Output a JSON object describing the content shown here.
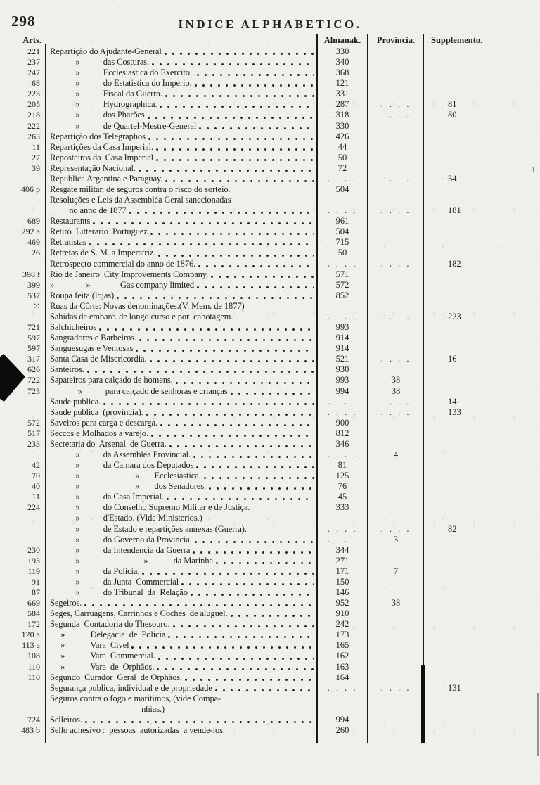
{
  "page": {
    "number": "298",
    "title": "INDICE ALPHABETICO."
  },
  "columns": {
    "arts": "Arts.",
    "almanak": "Almanak.",
    "provincia": "Provincia.",
    "supplemento": "Supplemento."
  },
  "ink_color": "#1f1f1f",
  "paper_color": "#f1efe9",
  "artifacts": {
    "right_margin_digit": "1"
  },
  "rows": [
    {
      "art": "221",
      "entry": "Repartição do Ajudante-General",
      "alm": "330",
      "prov": "",
      "sup": ""
    },
    {
      "art": "237",
      "entry": "            »           das Costuras.",
      "alm": "340",
      "prov": "",
      "sup": ""
    },
    {
      "art": "247",
      "entry": "            »           Ecclesiastica do Exercito..",
      "alm": "368",
      "prov": "",
      "sup": ""
    },
    {
      "art": "68",
      "entry": "            »           do Estatistica do Imperio.",
      "alm": "121",
      "prov": "",
      "sup": ""
    },
    {
      "art": "223",
      "entry": "            »           Fiscal da Guerra.",
      "alm": "331",
      "prov": "",
      "sup": ""
    },
    {
      "art": "205",
      "entry": "            »           Hydrographica.",
      "alm": "287",
      "prov": ". . . .",
      "sup": "81"
    },
    {
      "art": "218",
      "entry": "            »           dos Pharões",
      "alm": "318",
      "prov": ". . . .",
      "sup": "80"
    },
    {
      "art": "222",
      "entry": "            »           de Quartel-Mestre-General",
      "alm": "330",
      "prov": "",
      "sup": ""
    },
    {
      "art": "263",
      "entry": "Repartição dos Telegraphos",
      "alm": "426",
      "prov": "",
      "sup": ""
    },
    {
      "art": "11",
      "entry": "Repartições da Casa Imperial.",
      "alm": "44",
      "prov": "",
      "sup": ""
    },
    {
      "art": "27",
      "entry": "Reposteiros da  Casa Imperial",
      "alm": "50",
      "prov": "",
      "sup": ""
    },
    {
      "art": "39",
      "entry": "Representação Nacional.",
      "alm": "72",
      "prov": "",
      "sup": ""
    },
    {
      "art": "",
      "entry": "Republica Argentina e Paraguay.",
      "alm": ". . . .",
      "prov": ". . . .",
      "sup": "34"
    },
    {
      "art": "406 p",
      "entry": "Resgate militar, de seguros contra o risco do sorteio.",
      "alm": "504",
      "prov": "",
      "sup": "",
      "leader": false
    },
    {
      "art": "",
      "entry": "Resoluções e Leis da Assembléa Geral sanccionadas",
      "alm": "",
      "prov": "",
      "sup": "",
      "leader": false
    },
    {
      "art": "",
      "entry": "         no anno de 1877",
      "alm": ". . . .",
      "prov": ". . . .",
      "sup": "181"
    },
    {
      "art": "689",
      "entry": "Restaurants",
      "alm": "961",
      "prov": "",
      "sup": ""
    },
    {
      "art": "292 a",
      "entry": "Retiro  Litterario  Portuguez",
      "alm": "504",
      "prov": "",
      "sup": ""
    },
    {
      "art": "469",
      "entry": "Retratistas",
      "alm": "715",
      "prov": "",
      "sup": ""
    },
    {
      "art": "26",
      "entry": "Retretas de S. M. a Imperatriz.",
      "alm": "50",
      "prov": "",
      "sup": ""
    },
    {
      "art": "",
      "entry": "Retrospecto commercial do anno de 1876.",
      "alm": ". . . .",
      "prov": ". . . .",
      "sup": "182"
    },
    {
      "art": "398 f",
      "entry": "Rio de Janeiro  City Improvements Company.",
      "alm": "571",
      "prov": "",
      "sup": ""
    },
    {
      "art": "399",
      "entry": "»               »              Gas company limited",
      "alm": "572",
      "prov": "",
      "sup": ""
    },
    {
      "art": "537",
      "entry": "Roupa feita (lojas)",
      "alm": "852",
      "prov": "",
      "sup": ""
    },
    {
      "art": "⁙",
      "entry": "Ruas da Côrte: Novas denominações.(V. Mem. de 1877)",
      "alm": "",
      "prov": "",
      "sup": "",
      "leader": false
    },
    {
      "art": "",
      "entry": "Sahidas de embarc. de longo curso e por  cabotagem.",
      "alm": ". . . .",
      "prov": ". . . .",
      "sup": "223",
      "leader": false
    },
    {
      "art": "721",
      "entry": "Salchicheiros",
      "alm": "993",
      "prov": "",
      "sup": ""
    },
    {
      "art": "597",
      "entry": "Sangradores e Barbeiros.",
      "alm": "914",
      "prov": "",
      "sup": ""
    },
    {
      "art": "597",
      "entry": "Sanguesugas e Ventosas",
      "alm": "914",
      "prov": "",
      "sup": ""
    },
    {
      "art": "317",
      "entry": "Santa Casa de Misericordia.",
      "alm": "521",
      "prov": ". . . .",
      "sup": "16"
    },
    {
      "art": "626",
      "entry": "Santeiros.",
      "alm": "930",
      "prov": "",
      "sup": ""
    },
    {
      "art": "722",
      "entry": "Sapateiros para calçado de homens.",
      "alm": "993",
      "prov": "38",
      "sup": ""
    },
    {
      "art": "723",
      "entry": "             »           para calçado de senhoras e crianças",
      "alm": "994",
      "prov": "38",
      "sup": ""
    },
    {
      "art": "",
      "entry": "Saude publica.",
      "alm": ". . . .",
      "prov": ". . . .",
      "sup": "14"
    },
    {
      "art": "",
      "entry": "Saude publica  (provincia).",
      "alm": ". . . .",
      "prov": ". . . .",
      "sup": "133"
    },
    {
      "art": "572",
      "entry": "Saveiros para carga e descarga.",
      "alm": "900",
      "prov": "",
      "sup": ""
    },
    {
      "art": "517",
      "entry": "Seccos e Molhados a varejo.",
      "alm": "812",
      "prov": "",
      "sup": ""
    },
    {
      "art": "233",
      "entry": "Secretaria do  Arsenal  de Guerra.",
      "alm": "346",
      "prov": "",
      "sup": ""
    },
    {
      "art": "",
      "entry": "            »           da Assembléa Provincial.",
      "alm": ". . . .",
      "prov": "4",
      "sup": ""
    },
    {
      "art": "42",
      "entry": "            »           da Camara dos Deputados",
      "alm": "81",
      "prov": "",
      "sup": ""
    },
    {
      "art": "70",
      "entry": "            »                          »       Ecclesiastica.",
      "alm": "125",
      "prov": "",
      "sup": ""
    },
    {
      "art": "40",
      "entry": "            »                          »       dos Senadores.",
      "alm": "76",
      "prov": "",
      "sup": ""
    },
    {
      "art": "11",
      "entry": "            »           da Casa Imperial.",
      "alm": "45",
      "prov": "",
      "sup": ""
    },
    {
      "art": "224",
      "entry": "            »           do Conselho Supremo Militar e de Justiça.",
      "alm": "333",
      "prov": "",
      "sup": "",
      "leader": false
    },
    {
      "art": "",
      "entry": "            »           d'Estado. (Vide Ministerios.)",
      "alm": "",
      "prov": "",
      "sup": "",
      "leader": false
    },
    {
      "art": "",
      "entry": "            »           de Estado e repartições annexas (Guerra).",
      "alm": ". . . .",
      "prov": ". . . .",
      "sup": "82",
      "leader": false
    },
    {
      "art": "",
      "entry": "            »           do Governo da Provincia.",
      "alm": ". . . .",
      "prov": "3",
      "sup": ""
    },
    {
      "art": "230",
      "entry": "            »           da Intendencia da Guerra",
      "alm": "344",
      "prov": "",
      "sup": ""
    },
    {
      "art": "193",
      "entry": "            »                              »            da Marinha",
      "alm": "271",
      "prov": "",
      "sup": ""
    },
    {
      "art": "119",
      "entry": "            »           da Policia.",
      "alm": "171",
      "prov": "7",
      "sup": ""
    },
    {
      "art": "91",
      "entry": "            »           da Junta  Commercial",
      "alm": "150",
      "prov": "",
      "sup": ""
    },
    {
      "art": "87",
      "entry": "            »           do Tribunal  da  Relação",
      "alm": "146",
      "prov": "",
      "sup": ""
    },
    {
      "art": "669",
      "entry": "Segeiros.",
      "alm": "952",
      "prov": "38",
      "sup": ""
    },
    {
      "art": "584",
      "entry": "Seges, Carruagens, Carrinhos e Coches  de aluguel.",
      "alm": "910",
      "prov": "",
      "sup": ""
    },
    {
      "art": "172",
      "entry": "Segunda  Contadoria do Thesouro.",
      "alm": "242",
      "prov": "",
      "sup": ""
    },
    {
      "art": "120 a",
      "entry": "     »            Delegacia  de  Policia",
      "alm": "173",
      "prov": "",
      "sup": ""
    },
    {
      "art": "113 a",
      "entry": "     »            Vara  Civel",
      "alm": "165",
      "prov": "",
      "sup": ""
    },
    {
      "art": "108",
      "entry": "     »            Vara  Commercial.",
      "alm": "162",
      "prov": "",
      "sup": ""
    },
    {
      "art": "110",
      "entry": "     »            Vara  de  Orphãos.",
      "alm": "163",
      "prov": "",
      "sup": ""
    },
    {
      "art": "110",
      "entry": "Segundo  Curador  Geral  de Orphãos.",
      "alm": "164",
      "prov": "",
      "sup": ""
    },
    {
      "art": "",
      "entry": "Segurança publica, individual e de propriedade",
      "alm": ". . . .",
      "prov": ". . . .",
      "sup": "131"
    },
    {
      "art": "",
      "entry": "Seguros contra o fogo e maritimos, (vide Compa-",
      "alm": "",
      "prov": "",
      "sup": "",
      "leader": false
    },
    {
      "art": "",
      "entry": "                                           nhias.)",
      "alm": "",
      "prov": "",
      "sup": "",
      "leader": false
    },
    {
      "art": "724",
      "entry": "Selleiros.",
      "alm": "994",
      "prov": "",
      "sup": ""
    },
    {
      "art": "483 b",
      "entry": "Sello adhesivo :  pessoas  autorizadas  a vende-los.",
      "alm": "260",
      "prov": "",
      "sup": "",
      "leader": false
    }
  ]
}
